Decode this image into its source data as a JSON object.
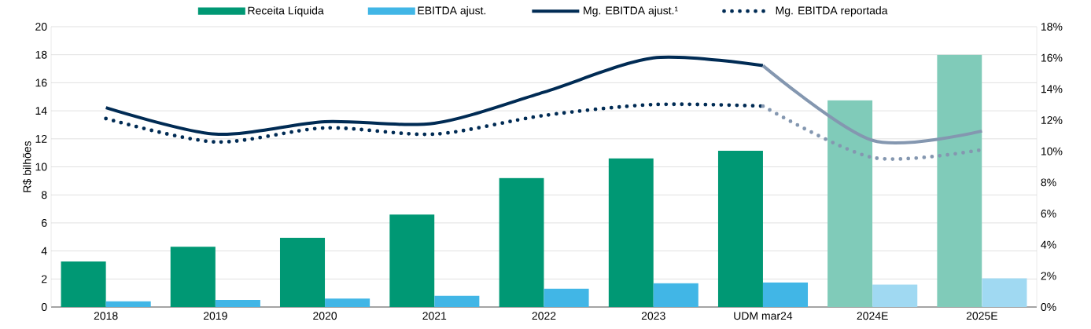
{
  "chart_data": {
    "type": "bar",
    "categories": [
      "2018",
      "2019",
      "2020",
      "2021",
      "2022",
      "2023",
      "UDM mar24",
      "2024E",
      "2025E"
    ],
    "ylabel": "R$ bilhões",
    "series": [
      {
        "name": "Receita Líquida",
        "colors": [
          "#009874",
          "#009874",
          "#009874",
          "#009874",
          "#009874",
          "#009874",
          "#009874",
          "#80cbb9",
          "#80cbb9"
        ],
        "values": [
          3.25,
          4.3,
          4.95,
          6.6,
          9.2,
          10.6,
          11.15,
          14.75,
          18.0
        ]
      },
      {
        "name": "EBITDA ajust.",
        "colors": [
          "#41b6e6",
          "#41b6e6",
          "#41b6e6",
          "#41b6e6",
          "#41b6e6",
          "#41b6e6",
          "#41b6e6",
          "#a0d9f2",
          "#a0d9f2"
        ],
        "values": [
          0.4,
          0.5,
          0.6,
          0.8,
          1.3,
          1.7,
          1.75,
          1.6,
          2.05
        ]
      },
      {
        "name": "Mg. EBITDA ajust.¹",
        "type": "line",
        "axis": "y2",
        "line_style": "solid",
        "color": "#002b54",
        "values": [
          12.8,
          11.1,
          11.9,
          11.8,
          13.8,
          16.0,
          15.5,
          null,
          null
        ]
      },
      {
        "name": "Mg. EBITDA reportada",
        "type": "line",
        "axis": "y2",
        "line_style": "dotted",
        "color": "#002b54",
        "values": [
          12.1,
          10.6,
          11.5,
          11.1,
          12.3,
          13.0,
          12.9,
          null,
          null
        ]
      },
      {
        "type": "line",
        "axis": "y2",
        "line_style": "solid",
        "color": "#8497b0",
        "values": [
          null,
          null,
          null,
          null,
          null,
          null,
          15.5,
          10.7,
          11.3
        ]
      },
      {
        "type": "line",
        "axis": "y2",
        "line_style": "dotted",
        "color": "#8497b0",
        "values": [
          null,
          null,
          null,
          null,
          null,
          null,
          12.9,
          9.6,
          10.1
        ]
      }
    ],
    "ylim": [
      0,
      20
    ],
    "yticks": [
      0,
      2,
      4,
      6,
      8,
      10,
      12,
      14,
      16,
      18,
      20
    ],
    "y2lim": [
      0,
      18
    ],
    "y2ticks": [
      {
        "value": 0,
        "label": "0%"
      },
      {
        "value": 2,
        "label": "2%"
      },
      {
        "value": 4,
        "label": "4%"
      },
      {
        "value": 6,
        "label": "6%"
      },
      {
        "value": 8,
        "label": "8%"
      },
      {
        "value": 10,
        "label": "10%"
      },
      {
        "value": 12,
        "label": "12%"
      },
      {
        "value": 14,
        "label": "14%"
      },
      {
        "value": 16,
        "label": "16%"
      },
      {
        "value": 18,
        "label": "18%"
      }
    ],
    "grid": "y",
    "legend": "top"
  }
}
